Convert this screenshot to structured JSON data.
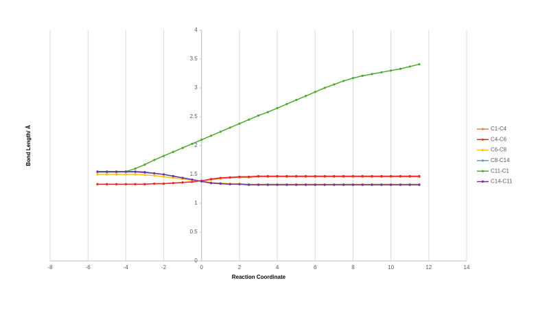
{
  "chart_data": {
    "type": "scatter-line",
    "x_label": "Reaction Coordinate",
    "y_label": "Bond Length/ Å",
    "xlim": [
      -8,
      14
    ],
    "xticks": [
      -8,
      -6,
      -4,
      -2,
      0,
      2,
      4,
      6,
      8,
      10,
      12,
      14
    ],
    "ylim": [
      0,
      4
    ],
    "yticks": [
      0,
      0.5,
      1,
      1.5,
      2,
      2.5,
      3,
      3.5,
      4
    ],
    "grid": "vertical",
    "legend": "right",
    "x": [
      -5.5,
      -5,
      -4.5,
      -4,
      -3.5,
      -3,
      -2.5,
      -2,
      -1.5,
      -1,
      -0.5,
      0,
      0.5,
      1,
      1.5,
      2,
      2.5,
      3,
      3.5,
      4,
      4.5,
      5,
      5.5,
      6,
      6.5,
      7,
      7.5,
      8,
      8.5,
      9,
      9.5,
      10,
      10.5,
      11,
      11.5
    ],
    "series": [
      {
        "name": "C1-C4",
        "color": "#ed7d31",
        "values": [
          1.33,
          1.33,
          1.33,
          1.33,
          1.33,
          1.33,
          1.34,
          1.34,
          1.35,
          1.36,
          1.37,
          1.39,
          1.41,
          1.43,
          1.44,
          1.45,
          1.45,
          1.46,
          1.46,
          1.46,
          1.46,
          1.46,
          1.46,
          1.46,
          1.46,
          1.46,
          1.46,
          1.46,
          1.46,
          1.46,
          1.46,
          1.46,
          1.46,
          1.46,
          1.46
        ]
      },
      {
        "name": "C4-C6",
        "color": "#e8262a",
        "values": [
          1.33,
          1.33,
          1.33,
          1.33,
          1.33,
          1.33,
          1.34,
          1.34,
          1.35,
          1.36,
          1.37,
          1.39,
          1.42,
          1.44,
          1.45,
          1.46,
          1.46,
          1.47,
          1.47,
          1.47,
          1.47,
          1.47,
          1.47,
          1.47,
          1.47,
          1.47,
          1.47,
          1.47,
          1.47,
          1.47,
          1.47,
          1.47,
          1.47,
          1.47,
          1.47
        ]
      },
      {
        "name": "C6-C8",
        "color": "#ffc000",
        "values": [
          1.5,
          1.5,
          1.5,
          1.5,
          1.5,
          1.49,
          1.48,
          1.46,
          1.44,
          1.42,
          1.4,
          1.38,
          1.36,
          1.35,
          1.34,
          1.34,
          1.33,
          1.33,
          1.33,
          1.33,
          1.33,
          1.33,
          1.33,
          1.33,
          1.33,
          1.33,
          1.33,
          1.33,
          1.33,
          1.33,
          1.33,
          1.33,
          1.33,
          1.33,
          1.33
        ]
      },
      {
        "name": "C8-C14",
        "color": "#5b9bd5",
        "values": [
          1.54,
          1.54,
          1.54,
          1.54,
          1.54,
          1.53,
          1.52,
          1.5,
          1.47,
          1.44,
          1.41,
          1.38,
          1.35,
          1.34,
          1.33,
          1.33,
          1.32,
          1.32,
          1.32,
          1.32,
          1.32,
          1.32,
          1.32,
          1.32,
          1.32,
          1.32,
          1.32,
          1.32,
          1.32,
          1.32,
          1.32,
          1.32,
          1.32,
          1.32,
          1.32
        ]
      },
      {
        "name": "C11-C1",
        "color": "#4ea72e",
        "values": [
          1.54,
          1.54,
          1.54,
          1.55,
          1.6,
          1.67,
          1.75,
          1.82,
          1.89,
          1.96,
          2.03,
          2.1,
          2.17,
          2.24,
          2.31,
          2.38,
          2.45,
          2.52,
          2.58,
          2.65,
          2.72,
          2.79,
          2.86,
          2.93,
          3.0,
          3.06,
          3.12,
          3.17,
          3.21,
          3.24,
          3.27,
          3.3,
          3.33,
          3.37,
          3.41
        ]
      },
      {
        "name": "C14-C11",
        "color": "#7030a0",
        "values": [
          1.55,
          1.55,
          1.55,
          1.55,
          1.55,
          1.54,
          1.52,
          1.5,
          1.47,
          1.44,
          1.41,
          1.38,
          1.35,
          1.34,
          1.33,
          1.33,
          1.32,
          1.32,
          1.32,
          1.32,
          1.32,
          1.32,
          1.32,
          1.32,
          1.32,
          1.32,
          1.32,
          1.32,
          1.32,
          1.32,
          1.32,
          1.32,
          1.32,
          1.32,
          1.32
        ]
      }
    ]
  }
}
